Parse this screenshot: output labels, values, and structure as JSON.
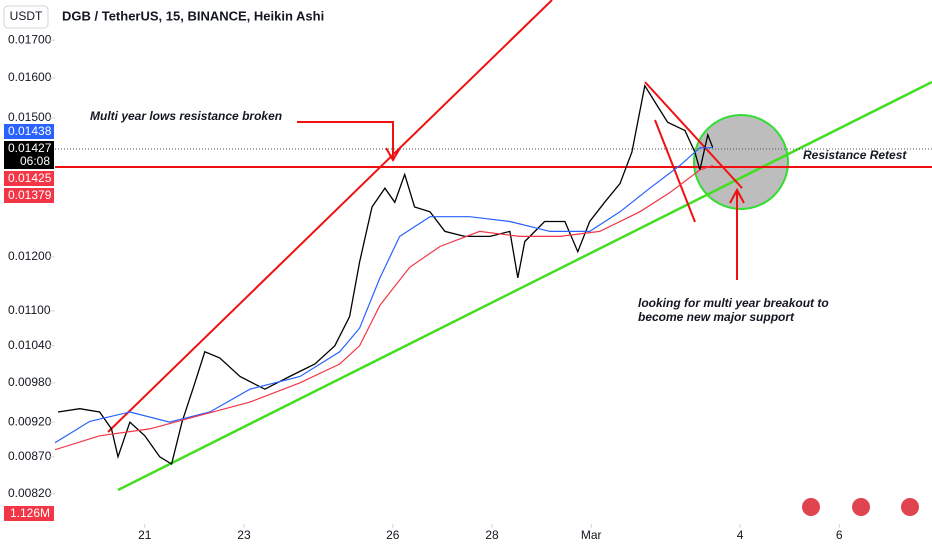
{
  "header": {
    "currency": "USDT",
    "title": "DGB / TetherUS, 15, BINANCE, Heikin Ashi"
  },
  "chart_data": {
    "type": "line",
    "log_scale": true,
    "grid": false,
    "xlim": [
      19.19,
      36.87
    ],
    "ylim": [
      0.00786,
      0.01728
    ],
    "xticks": [
      21,
      23,
      26,
      28,
      {
        "value": 30,
        "label": "Mar"
      },
      {
        "value": 33,
        "label": "4"
      },
      {
        "value": 35,
        "label": "6"
      }
    ],
    "yticks": [
      {
        "value": 0.017,
        "label": "0.01700"
      },
      {
        "value": 0.016,
        "label": "0.01600"
      },
      {
        "value": 0.015,
        "label": "0.01500"
      },
      {
        "value": 0.012,
        "label": "0.01200"
      },
      {
        "value": 0.011,
        "label": "0.01100"
      },
      {
        "value": 0.0104,
        "label": "0.01040"
      },
      {
        "value": 0.0098,
        "label": "0.00980"
      },
      {
        "value": 0.0092,
        "label": "0.00920"
      },
      {
        "value": 0.0087,
        "label": "0.00870"
      },
      {
        "value": 0.0082,
        "label": "0.00820"
      }
    ],
    "series": [
      {
        "color": "#000000",
        "x": [
          19.25,
          19.69,
          20.09,
          20.33,
          20.46,
          20.7,
          21,
          21.3,
          21.54,
          21.75,
          22.01,
          22.21,
          22.51,
          22.92,
          23.42,
          23.92,
          24.43,
          24.83,
          25.13,
          25.33,
          25.58,
          25.84,
          26.04,
          26.24,
          26.44,
          26.75,
          27.05,
          27.45,
          27.96,
          28.36,
          28.52,
          28.66,
          29.06,
          29.47,
          29.73,
          29.97,
          30.27,
          30.58,
          30.82,
          31.08,
          31.28,
          31.54,
          31.89,
          32.09,
          32.19,
          32.35,
          32.45
        ],
        "values": [
          0.00935,
          0.0094,
          0.00935,
          0.0091,
          0.0087,
          0.0092,
          0.009,
          0.0087,
          0.0086,
          0.0092,
          0.0098,
          0.0103,
          0.0102,
          0.0099,
          0.0097,
          0.0099,
          0.0101,
          0.0104,
          0.0109,
          0.0119,
          0.013,
          0.0134,
          0.0131,
          0.0137,
          0.013,
          0.0129,
          0.0125,
          0.0124,
          0.0124,
          0.0125,
          0.0116,
          0.0123,
          0.0127,
          0.0127,
          0.0121,
          0.0127,
          0.0131,
          0.0135,
          0.0142,
          0.0158,
          0.0154,
          0.0149,
          0.0147,
          0.0142,
          0.0138,
          0.0146,
          0.0143
        ]
      },
      {
        "color": "#2962ff",
        "x": [
          19.19,
          19.89,
          20.7,
          21.5,
          22.31,
          23.12,
          24.13,
          24.93,
          25.33,
          25.74,
          26.14,
          26.75,
          27.55,
          28.36,
          29.17,
          29.97,
          30.58,
          31.18,
          31.79,
          32.19,
          32.45
        ],
        "values": [
          0.0089,
          0.00921,
          0.00935,
          0.0092,
          0.00935,
          0.0097,
          0.0099,
          0.0103,
          0.0107,
          0.0116,
          0.0124,
          0.0128,
          0.0128,
          0.0127,
          0.0125,
          0.0125,
          0.0129,
          0.0134,
          0.0139,
          0.0143,
          0.0143
        ]
      },
      {
        "color": "#f23645",
        "x": [
          19.19,
          20.09,
          21.1,
          22.11,
          23.12,
          24.13,
          24.93,
          25.33,
          25.74,
          26.34,
          26.95,
          27.75,
          28.56,
          29.37,
          30.17,
          30.98,
          31.58,
          32.19,
          32.45
        ],
        "values": [
          0.0088,
          0.009,
          0.0091,
          0.0093,
          0.0095,
          0.0098,
          0.0101,
          0.0104,
          0.0111,
          0.0118,
          0.0122,
          0.0125,
          0.0124,
          0.0124,
          0.0125,
          0.0129,
          0.0133,
          0.0138,
          0.0139
        ]
      }
    ],
    "price_labels": [
      {
        "value": 0.01438,
        "label": "0.01438",
        "color": "#2962ff"
      },
      {
        "value": 0.01427,
        "label": "0.01427",
        "color": "#000000",
        "countdown": "06:08"
      },
      {
        "value": 0.01425,
        "label": "0.01425",
        "color": "#f23645"
      },
      {
        "value": 0.01379,
        "label": "0.01379",
        "color": "#f23645"
      }
    ],
    "volume_label": "1.126M",
    "annotations": {
      "resistance_broken": "Multi year lows resistance broken",
      "retest": "Resistance Retest",
      "breakout": [
        "looking for multi year breakout to",
        "become new major support"
      ]
    }
  }
}
